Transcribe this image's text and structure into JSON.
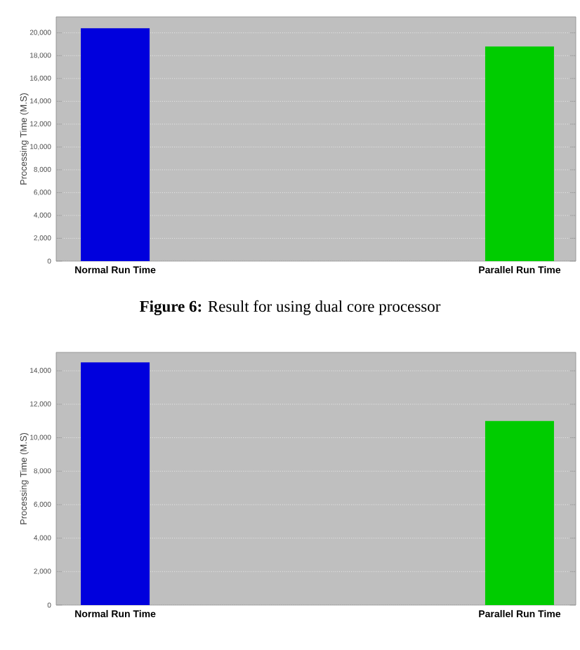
{
  "chart_data": [
    {
      "type": "bar",
      "categories": [
        "Normal Run Time",
        "Parallel Run Time"
      ],
      "values": [
        20400,
        18800
      ],
      "colors": [
        "#0000dd",
        "#00cc00"
      ],
      "ylabel": "Processing Time (M.S)",
      "ylim": [
        0,
        21400
      ],
      "yticks": [
        0,
        {
          "value": 2000,
          "label": "2,000"
        },
        {
          "value": 4000,
          "label": "4,000"
        },
        {
          "value": 6000,
          "label": "6,000"
        },
        {
          "value": 8000,
          "label": "8,000"
        },
        {
          "value": 10000,
          "label": "10,000"
        },
        {
          "value": 12000,
          "label": "12,000"
        },
        {
          "value": 14000,
          "label": "14,000"
        },
        {
          "value": 16000,
          "label": "16,000"
        },
        {
          "value": 18000,
          "label": "18,000"
        },
        {
          "value": 20000,
          "label": "20,000"
        }
      ],
      "grid": "y",
      "annotations": [
        "**Figure 6:** Result for using dual core processor"
      ]
    },
    {
      "type": "bar",
      "categories": [
        "Normal Run Time",
        "Parallel Run Time"
      ],
      "values": [
        14500,
        11000
      ],
      "colors": [
        "#0000dd",
        "#00cc00"
      ],
      "ylabel": "Processing Time (M.S)",
      "ylim": [
        0,
        15100
      ],
      "yticks": [
        0,
        {
          "value": 2000,
          "label": "2,000"
        },
        {
          "value": 4000,
          "label": "4,000"
        },
        {
          "value": 6000,
          "label": "6,000"
        },
        {
          "value": 8000,
          "label": "8,000"
        },
        {
          "value": 10000,
          "label": "10,000"
        },
        {
          "value": 12000,
          "label": "12,000"
        },
        {
          "value": 14000,
          "label": "14,000"
        }
      ],
      "grid": "y"
    }
  ]
}
